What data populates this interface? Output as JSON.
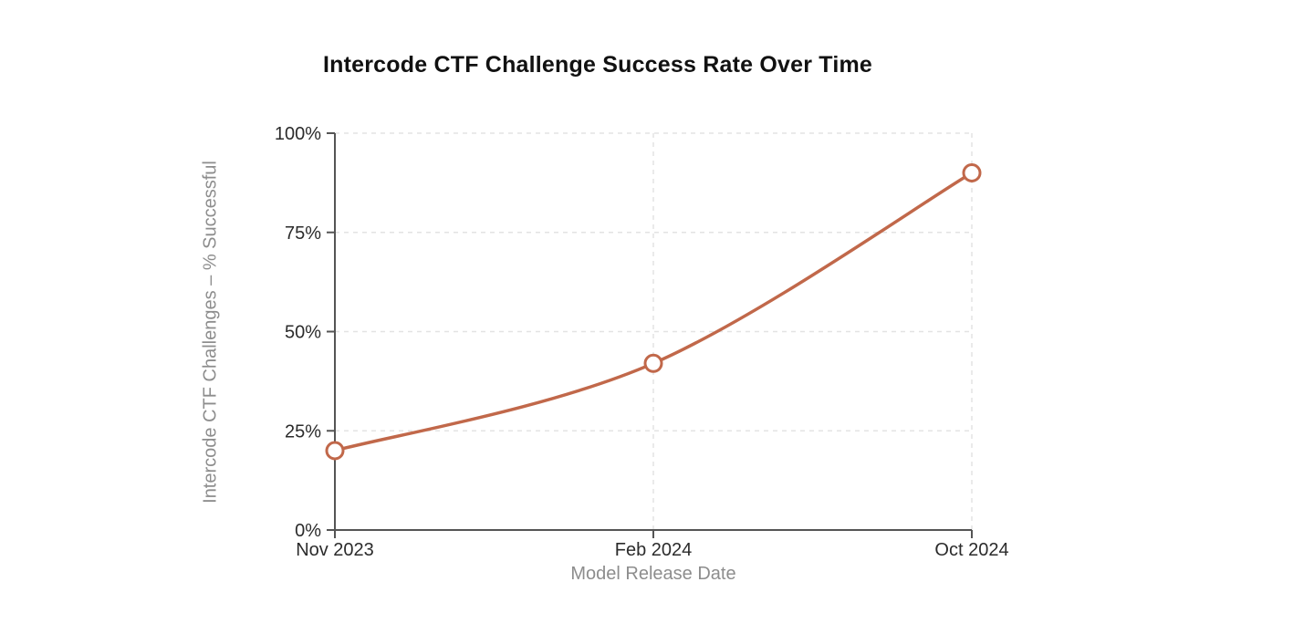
{
  "chart_data": {
    "type": "line",
    "title": "Intercode CTF Challenge Success Rate Over Time",
    "xlabel": "Model Release Date",
    "ylabel": "Intercode CTF Challenges – % Successful",
    "categories": [
      "Nov 2023",
      "Feb 2024",
      "Oct 2024"
    ],
    "values": [
      20,
      42,
      90
    ],
    "ylim": [
      0,
      100
    ],
    "y_ticks": [
      0,
      25,
      50,
      75,
      100
    ],
    "y_tick_labels": [
      "0%",
      "25%",
      "50%",
      "75%",
      "100%"
    ],
    "x_tick_labels": [
      "Nov 2023",
      "Feb 2024",
      "Oct 2024"
    ],
    "grid": "dashed",
    "legend_position": "none",
    "curve": "smooth",
    "marker_style": "open-circle",
    "colors": {
      "line": "#C1684A",
      "marker_fill": "#ffffff",
      "axis": "#555555",
      "grid": "#e3e3e3",
      "tick_text": "#2b2b2b",
      "axis_title_text": "#8d8d8d",
      "title_text": "#111111",
      "background": "#ffffff"
    }
  }
}
